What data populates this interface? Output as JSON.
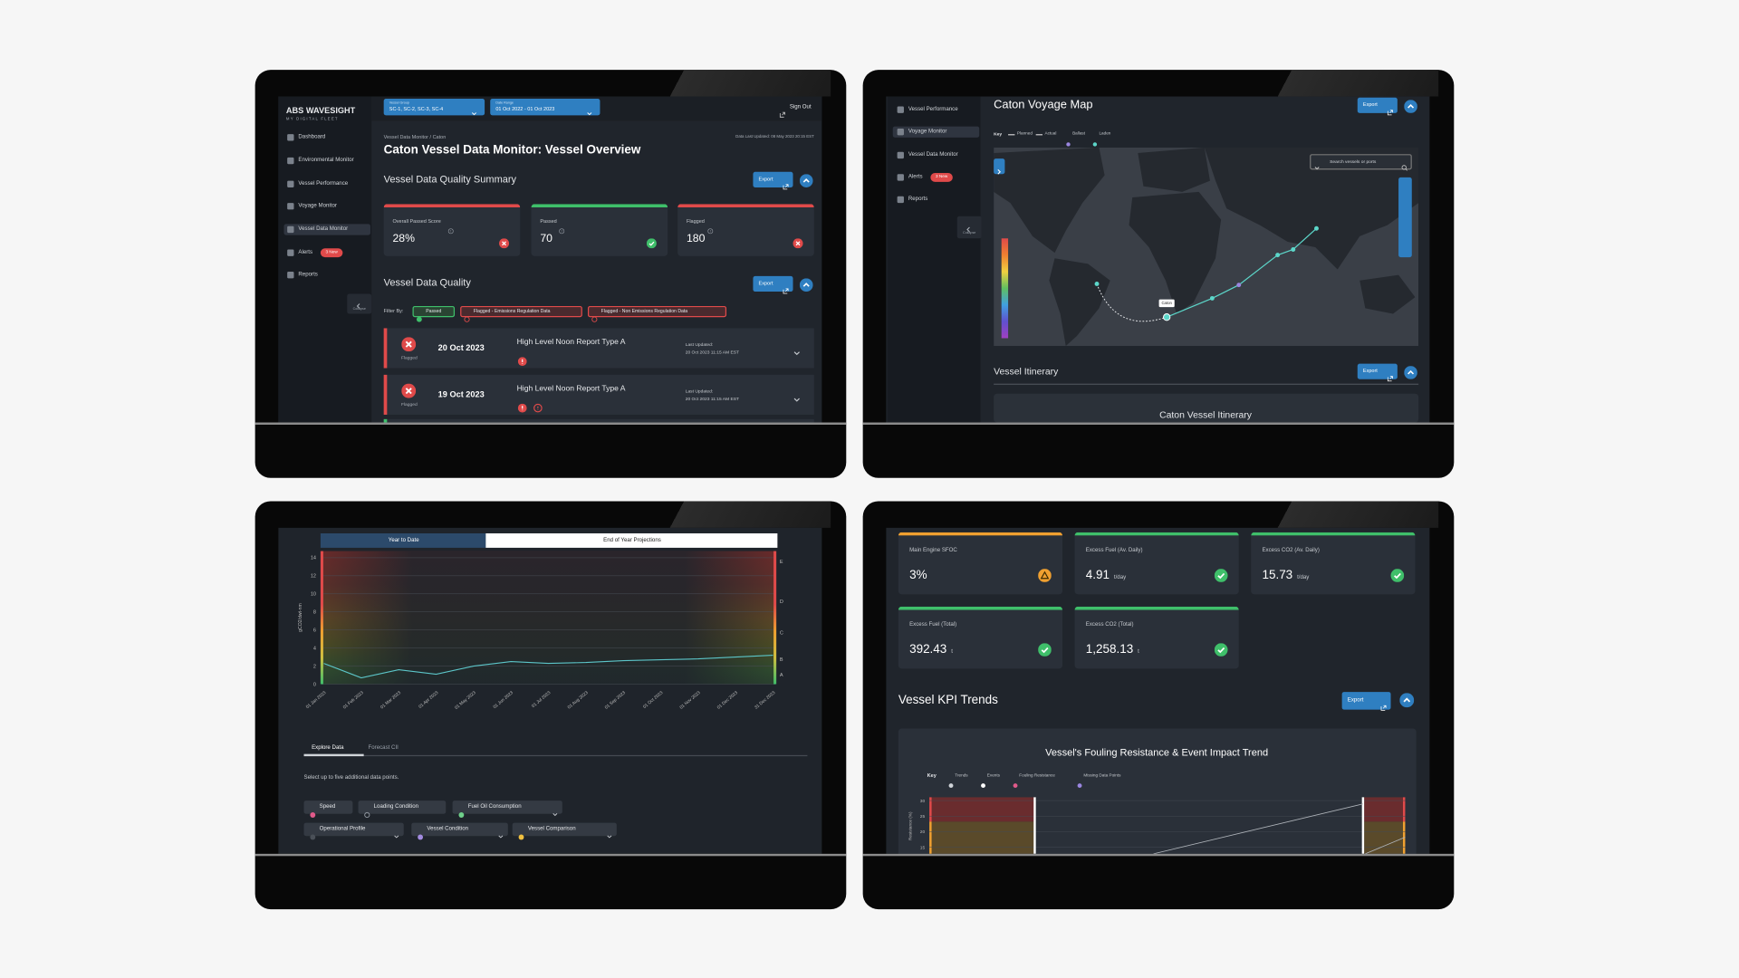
{
  "dashboard": {
    "logo": "ABS WAVESIGHT",
    "logo_sub": "MY DIGITAL FLEET",
    "nav": [
      "Dashboard",
      "Environmental Monitor",
      "Vessel Performance",
      "Voyage Monitor",
      "Vessel Data Monitor",
      "Alerts",
      "Reports"
    ],
    "alerts_badge": "3 New",
    "collapse": "Collapse",
    "vessel_group_label": "Vessel Group",
    "vessel_group": "SC-1, SC-2, SC-3, SC-4",
    "date_range_label": "Date Range",
    "date_range": "01 Oct 2022 - 01 Oct 2023",
    "sign_out": "Sign Out",
    "breadcrumb": "Vessel Data Monitor / Caton",
    "last_updated": "Data Last Updated: 08 May 2023 20:15 EST",
    "title": "Caton Vessel Data Monitor: Vessel Overview",
    "summary_heading": "Vessel Data Quality Summary",
    "export": "Export",
    "cards": [
      {
        "label": "Overall Passed Score",
        "value": "28%"
      },
      {
        "label": "Passed",
        "value": "70"
      },
      {
        "label": "Flagged",
        "value": "180"
      }
    ],
    "quality_heading": "Vessel Data Quality",
    "filter_label": "Filter By:",
    "filters": [
      "Passed",
      "Flagged - Emissions Regulation Data",
      "Flagged - Non Emissions Regulation Data"
    ],
    "rows": [
      {
        "status": "Flagged",
        "date": "20 Oct 2023",
        "report": "High Level Noon Report Type A",
        "updated_label": "Last Updated:",
        "updated": "20 Oct 2023 11:15 AM EST"
      },
      {
        "status": "Flagged",
        "date": "19 Oct 2023",
        "report": "High Level Noon Report Type A",
        "updated_label": "Last Updated:",
        "updated": "20 Oct 2023 11:15 AM EST"
      }
    ]
  },
  "voyage": {
    "nav": [
      "Vessel Performance",
      "Voyage Monitor",
      "Vessel Data Monitor",
      "Alerts",
      "Reports"
    ],
    "alerts_badge": "3 New",
    "collapse": "Collapse",
    "title": "Caton Voyage Map",
    "export": "Export",
    "key_label": "Key",
    "key": [
      "Planned",
      "Actual",
      "Ballast",
      "Laden"
    ],
    "search": "Search vessels or ports",
    "vessel_label": "Caton",
    "itinerary_heading": "Vessel Itinerary",
    "itinerary_title": "Caton Vessel Itinerary"
  },
  "cii": {
    "tabs": [
      "Year to Date",
      "End of Year Projections"
    ],
    "chart": {
      "type": "line",
      "ylabel": "gCO2/dwt-nm",
      "categories": [
        "01 Jan 2023",
        "01 Feb 2023",
        "01 Mar 2023",
        "01 Apr 2023",
        "01 May 2023",
        "01 Jun 2023",
        "01 Jul 2023",
        "01 Aug 2023",
        "01 Sep 2023",
        "01 Oct 2023",
        "01 Nov 2023",
        "01 Dec 2023",
        "31 Dec 2023"
      ],
      "values": [
        2.3,
        0.7,
        1.6,
        1.1,
        2.0,
        2.5,
        2.3,
        2.4,
        2.6,
        2.7,
        2.8,
        3.0,
        3.2
      ],
      "color": "#5cc6c9",
      "ylim": [
        0,
        14
      ],
      "yticks": [
        0,
        2,
        4,
        6,
        8,
        10,
        12,
        14
      ],
      "ratings": [
        "E",
        "D",
        "C",
        "B",
        "A"
      ]
    },
    "explore_tabs": [
      "Explore Data",
      "Forecast CII"
    ],
    "instruction": "Select up to five additional data points.",
    "chips": [
      "Speed",
      "Loading Condition",
      "Fuel Oil Consumption",
      "Operational Profile",
      "Vessel Condition",
      "Vessel Comparison"
    ]
  },
  "kpi": {
    "cards": [
      {
        "label": "Main Engine SFOC",
        "value": "3%"
      },
      {
        "label": "Excess Fuel (Av. Daily)",
        "value": "4.91",
        "unit": "t/day"
      },
      {
        "label": "Excess CO2 (Av. Daily)",
        "value": "15.73",
        "unit": "t/day"
      },
      {
        "label": "Excess Fuel (Total)",
        "value": "392.43",
        "unit": "t"
      },
      {
        "label": "Excess CO2 (Total)",
        "value": "1,258.13",
        "unit": "t"
      }
    ],
    "trends_heading": "Vessel KPI Trends",
    "export": "Export",
    "trend_title": "Vessel's Fouling Resistance & Event Impact Trend",
    "key_label": "Key",
    "key": [
      "Trends",
      "Events",
      "Fouling Resistance",
      "Missing Data Points"
    ],
    "ylabel": "Resistance (%)",
    "yticks": [
      30,
      25,
      20,
      15
    ]
  }
}
